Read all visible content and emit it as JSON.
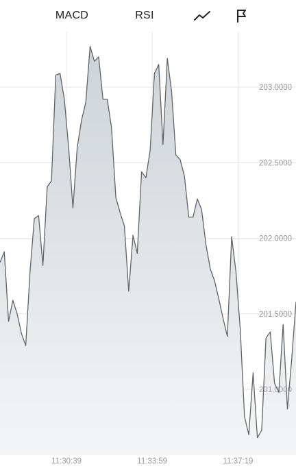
{
  "toolbar": {
    "macd_label": "MACD",
    "rsi_label": "RSI",
    "line_icon": "trend-line-icon",
    "flag_icon": "flag-icon"
  },
  "chart_data": {
    "type": "area",
    "y_ticks": [
      "203.0000",
      "202.5000",
      "202.0000",
      "201.5000",
      "201.0000"
    ],
    "y_tick_values": [
      203.0,
      202.5,
      202.0,
      201.5,
      201.0
    ],
    "x_ticks": [
      "11:30:39",
      "11:33:59",
      "11:37:19"
    ],
    "ylim": [
      200.65,
      203.5
    ],
    "grid": true,
    "colors": {
      "line": "#5f6469",
      "fill_top": "#cdd3d8",
      "fill_bottom": "#f4f5f6",
      "grid": "#e6e6e6",
      "tick_text": "#9a9a9a"
    },
    "values": [
      201.84,
      201.91,
      201.45,
      201.59,
      201.5,
      201.37,
      201.29,
      201.78,
      202.13,
      202.15,
      201.82,
      202.34,
      202.38,
      203.08,
      203.09,
      202.92,
      202.6,
      202.2,
      202.6,
      202.78,
      202.9,
      203.27,
      203.17,
      203.2,
      202.92,
      202.92,
      202.73,
      202.27,
      202.17,
      202.08,
      201.65,
      202.02,
      201.9,
      202.44,
      202.4,
      202.58,
      203.09,
      203.15,
      202.62,
      203.19,
      202.97,
      202.55,
      202.52,
      202.41,
      202.14,
      202.14,
      202.26,
      202.19,
      201.96,
      201.8,
      201.72,
      201.6,
      201.47,
      201.35,
      202.01,
      201.78,
      201.4,
      200.82,
      200.7,
      201.11,
      200.68,
      200.73,
      201.34,
      201.38,
      201.04,
      200.98,
      201.43,
      200.87,
      201.2,
      201.58
    ],
    "x_tick_indices": [
      15.5,
      35.5,
      55.5
    ]
  }
}
